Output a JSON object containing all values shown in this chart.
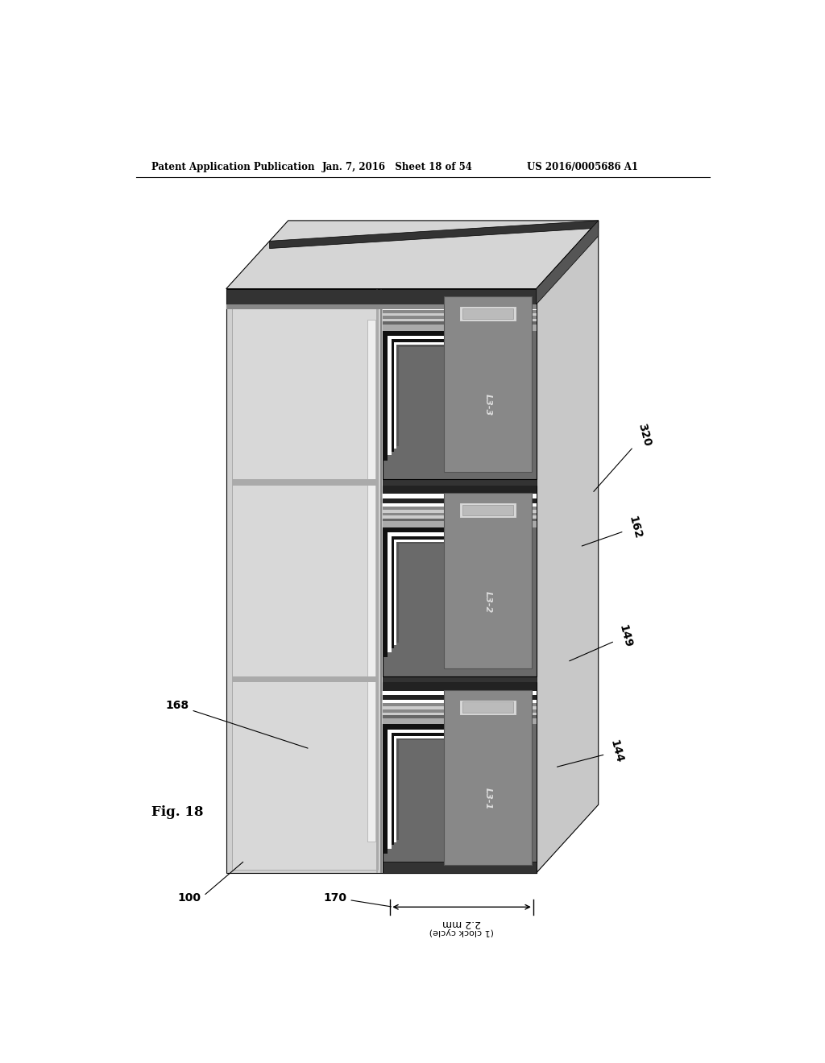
{
  "title_left": "Patent Application Publication",
  "title_mid": "Jan. 7, 2016   Sheet 18 of 54",
  "title_right": "US 2016/0005686 A1",
  "fig_label": "Fig. 18",
  "dim_text_1": "2.2 mm",
  "dim_text_2": "(1 clock cycle)",
  "bg_color": "#ffffff",
  "layer_labels": [
    "L3-1",
    "L3-2",
    "L3-3"
  ],
  "ref_nums": [
    "100",
    "170",
    "168",
    "144",
    "149",
    "162",
    "320"
  ]
}
